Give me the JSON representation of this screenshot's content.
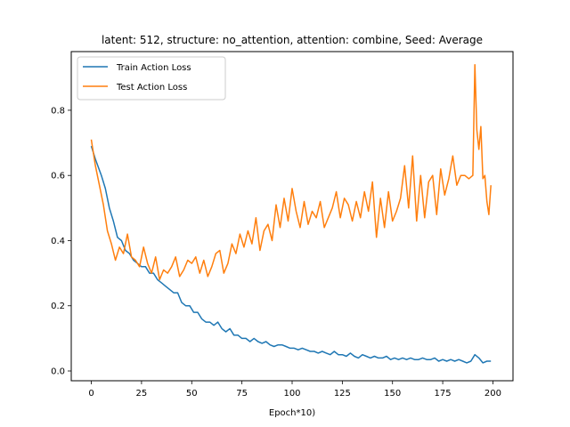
{
  "chart_data": {
    "type": "line",
    "title": "latent: 512, structure: no_attention, attention: combine, Seed: Average",
    "xlabel": "Epoch*10)",
    "ylabel": "",
    "xlim": [
      -10,
      210
    ],
    "ylim": [
      -0.03,
      0.98
    ],
    "xticks": [
      0,
      25,
      50,
      75,
      100,
      125,
      150,
      175,
      200
    ],
    "yticks": [
      0.0,
      0.2,
      0.4,
      0.6,
      0.8
    ],
    "ytick_labels": [
      "0.0",
      "0.2",
      "0.4",
      "0.6",
      "0.8"
    ],
    "legend_position": "top-left",
    "grid": false,
    "series": [
      {
        "name": "Train Action Loss",
        "color": "#1f77b4",
        "x": [
          0,
          2,
          5,
          7,
          9,
          11,
          13,
          15,
          17,
          19,
          21,
          23,
          25,
          27,
          29,
          31,
          33,
          35,
          37,
          39,
          41,
          43,
          45,
          47,
          49,
          51,
          53,
          55,
          57,
          59,
          61,
          63,
          65,
          67,
          69,
          71,
          73,
          75,
          77,
          79,
          81,
          83,
          85,
          87,
          89,
          91,
          93,
          95,
          97,
          99,
          101,
          103,
          105,
          107,
          109,
          111,
          113,
          115,
          117,
          119,
          121,
          123,
          125,
          127,
          129,
          131,
          133,
          135,
          137,
          139,
          141,
          143,
          145,
          147,
          149,
          151,
          153,
          155,
          157,
          159,
          161,
          163,
          165,
          167,
          169,
          171,
          173,
          175,
          177,
          179,
          181,
          183,
          185,
          187,
          189,
          191,
          193,
          195,
          197,
          199
        ],
        "y": [
          0.69,
          0.65,
          0.6,
          0.56,
          0.5,
          0.46,
          0.41,
          0.4,
          0.37,
          0.36,
          0.34,
          0.33,
          0.32,
          0.32,
          0.3,
          0.3,
          0.28,
          0.27,
          0.26,
          0.25,
          0.24,
          0.24,
          0.21,
          0.2,
          0.2,
          0.18,
          0.18,
          0.16,
          0.15,
          0.15,
          0.14,
          0.15,
          0.13,
          0.12,
          0.13,
          0.11,
          0.11,
          0.1,
          0.1,
          0.09,
          0.1,
          0.09,
          0.085,
          0.09,
          0.08,
          0.075,
          0.08,
          0.08,
          0.075,
          0.07,
          0.07,
          0.065,
          0.07,
          0.065,
          0.06,
          0.06,
          0.055,
          0.06,
          0.055,
          0.05,
          0.06,
          0.05,
          0.05,
          0.045,
          0.055,
          0.045,
          0.04,
          0.05,
          0.045,
          0.04,
          0.045,
          0.04,
          0.04,
          0.045,
          0.035,
          0.04,
          0.035,
          0.04,
          0.035,
          0.04,
          0.035,
          0.035,
          0.04,
          0.035,
          0.035,
          0.04,
          0.03,
          0.035,
          0.03,
          0.035,
          0.03,
          0.035,
          0.03,
          0.025,
          0.03,
          0.05,
          0.04,
          0.025,
          0.03,
          0.03
        ]
      },
      {
        "name": "Test Action Loss",
        "color": "#ff7f0e",
        "x": [
          0,
          2,
          4,
          6,
          8,
          10,
          12,
          14,
          16,
          18,
          20,
          22,
          24,
          26,
          28,
          30,
          32,
          34,
          36,
          38,
          40,
          42,
          44,
          46,
          48,
          50,
          52,
          54,
          56,
          58,
          60,
          62,
          64,
          66,
          68,
          70,
          72,
          74,
          76,
          78,
          80,
          82,
          84,
          86,
          88,
          90,
          92,
          94,
          96,
          98,
          100,
          102,
          104,
          106,
          108,
          110,
          112,
          114,
          116,
          118,
          120,
          122,
          124,
          126,
          128,
          130,
          132,
          134,
          136,
          138,
          140,
          142,
          144,
          146,
          148,
          150,
          152,
          154,
          156,
          158,
          160,
          162,
          164,
          166,
          168,
          170,
          172,
          174,
          176,
          178,
          180,
          182,
          184,
          186,
          188,
          190,
          191,
          192,
          193,
          194,
          195,
          196,
          197,
          198,
          199
        ],
        "y": [
          0.71,
          0.63,
          0.57,
          0.51,
          0.43,
          0.39,
          0.34,
          0.38,
          0.36,
          0.42,
          0.35,
          0.34,
          0.32,
          0.38,
          0.33,
          0.3,
          0.35,
          0.28,
          0.31,
          0.3,
          0.32,
          0.35,
          0.29,
          0.31,
          0.34,
          0.33,
          0.35,
          0.3,
          0.34,
          0.29,
          0.32,
          0.36,
          0.37,
          0.3,
          0.33,
          0.39,
          0.36,
          0.42,
          0.38,
          0.43,
          0.39,
          0.47,
          0.37,
          0.43,
          0.45,
          0.4,
          0.51,
          0.44,
          0.53,
          0.46,
          0.56,
          0.49,
          0.44,
          0.52,
          0.45,
          0.49,
          0.47,
          0.52,
          0.44,
          0.47,
          0.5,
          0.55,
          0.47,
          0.53,
          0.51,
          0.46,
          0.52,
          0.47,
          0.55,
          0.49,
          0.58,
          0.41,
          0.53,
          0.44,
          0.55,
          0.46,
          0.49,
          0.53,
          0.63,
          0.5,
          0.66,
          0.46,
          0.6,
          0.47,
          0.58,
          0.6,
          0.48,
          0.62,
          0.54,
          0.59,
          0.66,
          0.57,
          0.6,
          0.6,
          0.59,
          0.6,
          0.94,
          0.74,
          0.68,
          0.75,
          0.59,
          0.6,
          0.52,
          0.48,
          0.57
        ]
      }
    ]
  }
}
